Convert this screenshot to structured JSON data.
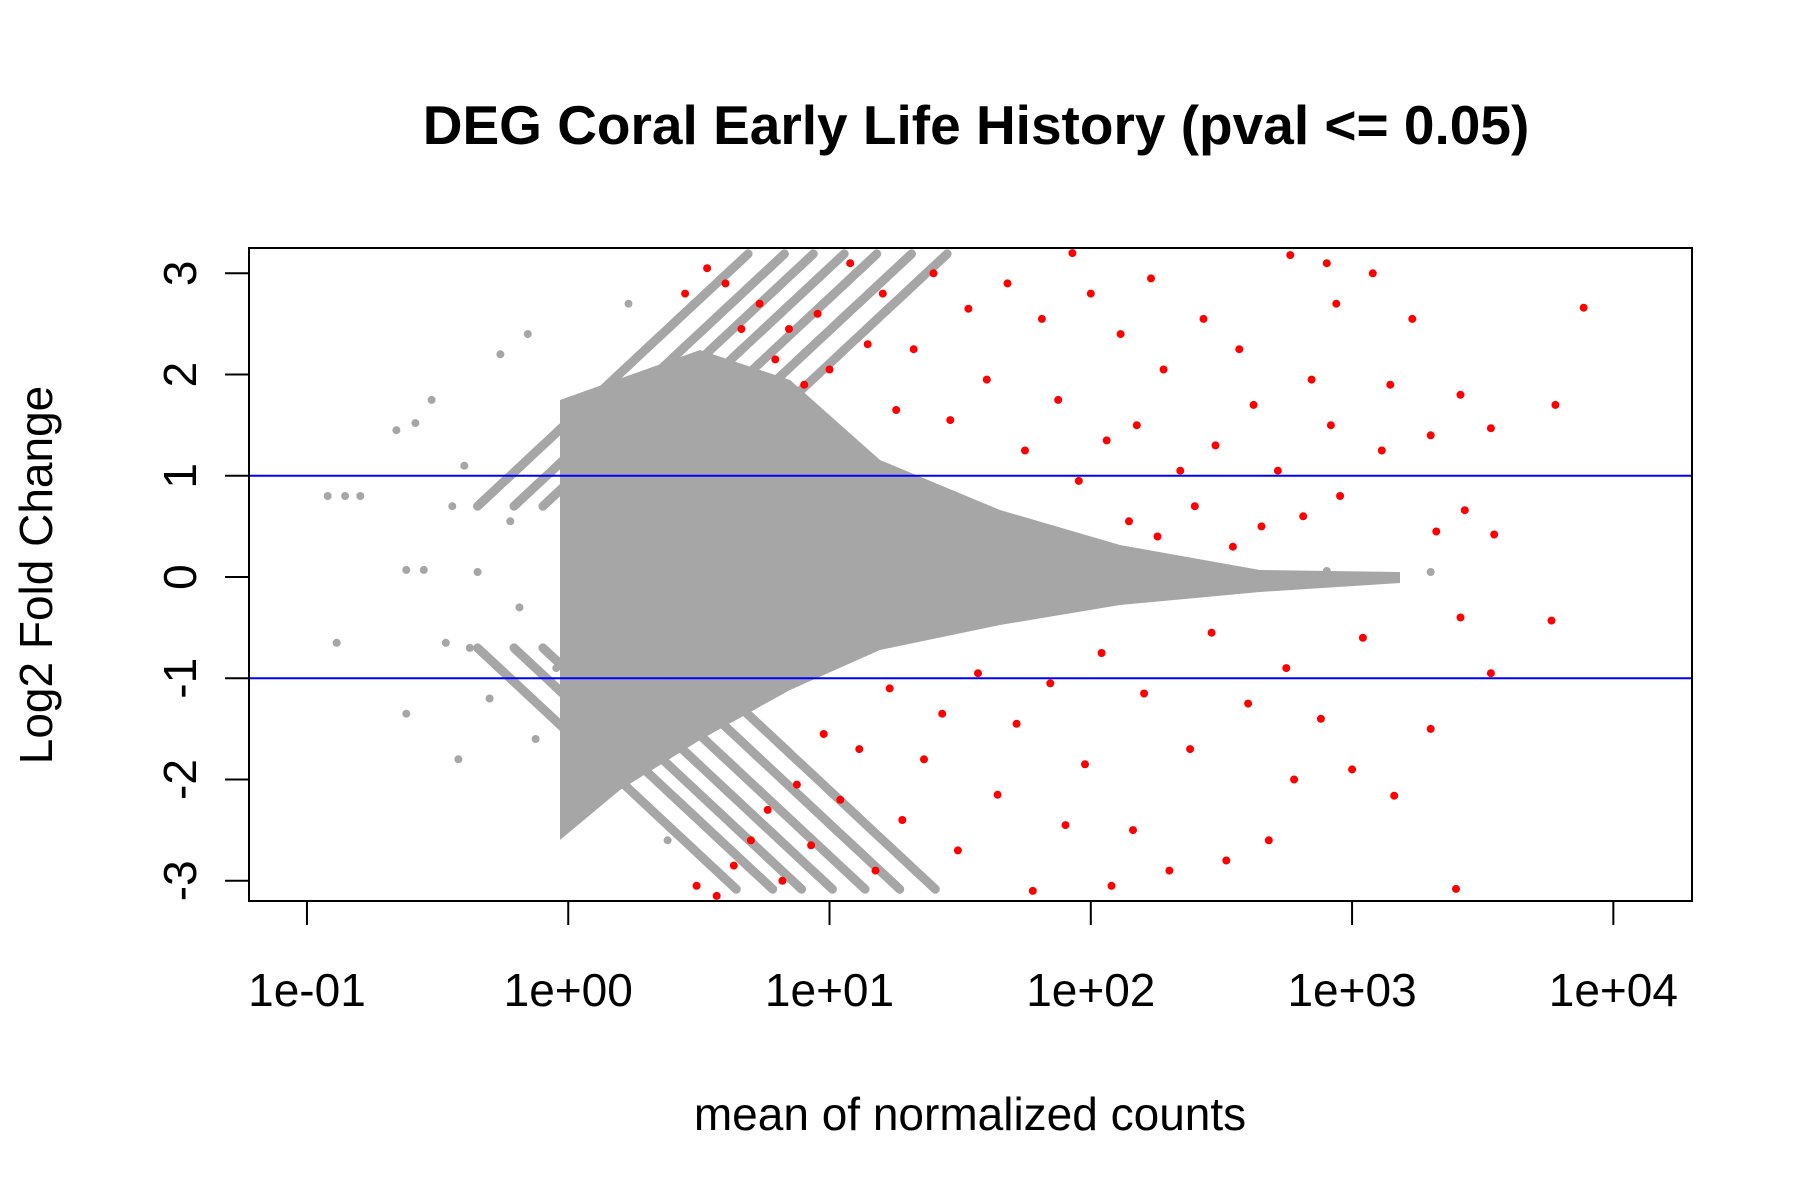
{
  "chart_data": {
    "type": "scatter",
    "title": "DEG Coral Early Life History  (pval <= 0.05)",
    "xlabel": "mean of normalized counts",
    "ylabel": "Log2 Fold Change",
    "x_scale": "log10",
    "xlim": [
      0.06,
      20000
    ],
    "ylim": [
      -3.2,
      3.25
    ],
    "x_ticks": [
      {
        "value": 0.1,
        "label": "1e-01"
      },
      {
        "value": 1,
        "label": "1e+00"
      },
      {
        "value": 10,
        "label": "1e+01"
      },
      {
        "value": 100,
        "label": "1e+02"
      },
      {
        "value": 1000,
        "label": "1e+03"
      },
      {
        "value": 10000,
        "label": "1e+04"
      }
    ],
    "y_ticks": [
      {
        "value": -3,
        "label": "-3"
      },
      {
        "value": -2,
        "label": "-2"
      },
      {
        "value": -1,
        "label": "-1"
      },
      {
        "value": 0,
        "label": "0"
      },
      {
        "value": 1,
        "label": "1"
      },
      {
        "value": 2,
        "label": "2"
      },
      {
        "value": 3,
        "label": "3"
      }
    ],
    "hlines": [
      1,
      -1
    ],
    "grid": false,
    "colors": {
      "not_significant": "#a6a6a6",
      "significant": "#ff0000",
      "threshold_line": "#0000ff"
    },
    "series": [
      {
        "color_key": "significant",
        "points": [
          [
            7700,
            2.66
          ],
          [
            6000,
            1.7
          ],
          [
            5800,
            -0.43
          ],
          [
            3400,
            1.47
          ],
          [
            3500,
            0.42
          ],
          [
            3400,
            -0.95
          ],
          [
            2600,
            1.8
          ],
          [
            2500,
            -3.08
          ],
          [
            2700,
            0.66
          ],
          [
            2600,
            -0.4
          ],
          [
            2000,
            1.4
          ],
          [
            2100,
            0.45
          ],
          [
            2000,
            -1.5
          ],
          [
            1700,
            2.55
          ],
          [
            1400,
            1.9
          ],
          [
            1450,
            -2.16
          ],
          [
            1300,
            1.25
          ],
          [
            1200,
            3.0
          ],
          [
            1100,
            -0.6
          ],
          [
            1000,
            -1.9
          ],
          [
            900,
            0.8
          ],
          [
            870,
            2.7
          ],
          [
            830,
            1.5
          ],
          [
            800,
            3.1
          ],
          [
            760,
            -1.4
          ],
          [
            700,
            1.95
          ],
          [
            650,
            0.6
          ],
          [
            600,
            -2.0
          ],
          [
            580,
            3.18
          ],
          [
            560,
            -0.9
          ],
          [
            520,
            1.05
          ],
          [
            480,
            -2.6
          ],
          [
            450,
            0.5
          ],
          [
            420,
            1.7
          ],
          [
            400,
            -1.25
          ],
          [
            370,
            2.25
          ],
          [
            350,
            0.3
          ],
          [
            330,
            -2.8
          ],
          [
            300,
            1.3
          ],
          [
            290,
            -0.55
          ],
          [
            270,
            2.55
          ],
          [
            250,
            0.7
          ],
          [
            240,
            -1.7
          ],
          [
            220,
            1.05
          ],
          [
            200,
            -2.9
          ],
          [
            190,
            2.05
          ],
          [
            180,
            0.4
          ],
          [
            170,
            2.95
          ],
          [
            160,
            -1.15
          ],
          [
            150,
            1.5
          ],
          [
            145,
            -2.5
          ],
          [
            140,
            0.55
          ],
          [
            130,
            2.4
          ],
          [
            120,
            -3.05
          ],
          [
            115,
            1.35
          ],
          [
            110,
            -0.75
          ],
          [
            100,
            2.8
          ],
          [
            95,
            -1.85
          ],
          [
            90,
            0.95
          ],
          [
            85,
            3.2
          ],
          [
            80,
            -2.45
          ],
          [
            75,
            1.75
          ],
          [
            70,
            -1.05
          ],
          [
            65,
            2.55
          ],
          [
            60,
            -3.1
          ],
          [
            56,
            1.25
          ],
          [
            52,
            -1.45
          ],
          [
            48,
            2.9
          ],
          [
            44,
            -2.15
          ],
          [
            40,
            1.95
          ],
          [
            37,
            -0.95
          ],
          [
            34,
            2.65
          ],
          [
            31,
            -2.7
          ],
          [
            29,
            1.55
          ],
          [
            27,
            -1.35
          ],
          [
            25,
            3.0
          ],
          [
            23,
            -1.8
          ],
          [
            21,
            2.25
          ],
          [
            19,
            -2.4
          ],
          [
            18,
            1.65
          ],
          [
            17,
            -1.1
          ],
          [
            16,
            2.8
          ],
          [
            15,
            -2.9
          ],
          [
            14,
            2.3
          ],
          [
            13,
            -1.7
          ],
          [
            12,
            3.1
          ],
          [
            11,
            -2.2
          ],
          [
            10,
            2.05
          ],
          [
            9.5,
            -1.55
          ],
          [
            9,
            2.6
          ],
          [
            8.5,
            -2.65
          ],
          [
            8,
            1.9
          ],
          [
            7.5,
            -2.05
          ],
          [
            7,
            2.45
          ],
          [
            6.6,
            -3.0
          ],
          [
            6.2,
            2.15
          ],
          [
            5.8,
            -2.3
          ],
          [
            5.4,
            2.7
          ],
          [
            5,
            -2.6
          ],
          [
            4.6,
            2.45
          ],
          [
            4.3,
            -2.85
          ],
          [
            4,
            2.9
          ],
          [
            3.7,
            -3.15
          ],
          [
            3.4,
            3.05
          ],
          [
            3.1,
            -3.05
          ],
          [
            2.8,
            2.8
          ]
        ]
      },
      {
        "color_key": "not_significant",
        "points": [
          [
            0.12,
            0.8
          ],
          [
            0.14,
            0.8
          ],
          [
            0.16,
            0.8
          ],
          [
            0.13,
            -0.65
          ],
          [
            0.24,
            0.07
          ],
          [
            0.28,
            0.07
          ],
          [
            0.22,
            1.45
          ],
          [
            0.26,
            1.52
          ],
          [
            0.3,
            1.75
          ],
          [
            0.24,
            -1.35
          ],
          [
            0.34,
            -0.65
          ],
          [
            0.36,
            0.7
          ],
          [
            0.4,
            1.1
          ],
          [
            0.42,
            -0.7
          ],
          [
            0.45,
            0.05
          ],
          [
            0.38,
            -1.8
          ],
          [
            0.5,
            -1.2
          ],
          [
            0.55,
            2.2
          ],
          [
            0.6,
            0.55
          ],
          [
            0.65,
            -0.3
          ],
          [
            0.7,
            2.4
          ],
          [
            0.75,
            -1.6
          ],
          [
            0.8,
            1.3
          ],
          [
            0.9,
            -0.9
          ],
          [
            1.0,
            0.2
          ],
          [
            1.1,
            1.6
          ],
          [
            1.2,
            -2.1
          ],
          [
            1.3,
            0.9
          ],
          [
            1.5,
            -0.4
          ],
          [
            1.7,
            2.7
          ],
          [
            1.9,
            -1.3
          ],
          [
            2.1,
            0.5
          ],
          [
            2.4,
            -2.6
          ],
          [
            2.7,
            1.1
          ],
          [
            3.0,
            -0.7
          ],
          [
            3.5,
            0.1
          ],
          [
            4,
            1.2
          ],
          [
            4.5,
            -1.0
          ],
          [
            5,
            0.6
          ],
          [
            6,
            -0.3
          ],
          [
            7,
            0.8
          ],
          [
            8,
            -0.6
          ],
          [
            10,
            0.4
          ],
          [
            12,
            -0.35
          ],
          [
            15,
            0.5
          ],
          [
            20,
            0.2
          ],
          [
            25,
            -0.3
          ],
          [
            30,
            0.35
          ],
          [
            40,
            -0.2
          ],
          [
            50,
            0.25
          ],
          [
            60,
            -0.15
          ],
          [
            80,
            0.18
          ],
          [
            100,
            -0.1
          ],
          [
            150,
            0.12
          ],
          [
            200,
            -0.08
          ],
          [
            300,
            0.1
          ],
          [
            500,
            -0.05
          ],
          [
            800,
            0.06
          ],
          [
            1200,
            -0.03
          ],
          [
            2000,
            0.05
          ]
        ]
      }
    ]
  }
}
